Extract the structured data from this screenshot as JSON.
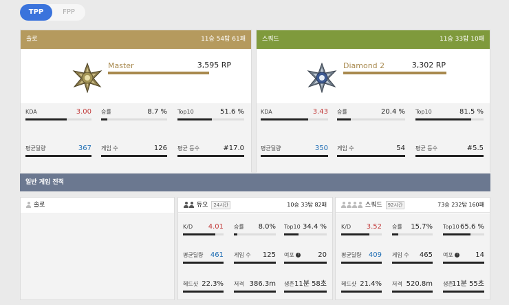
{
  "tabs": {
    "tpp": "TPP",
    "fpp": "FPP"
  },
  "colors": {
    "solo_header": "#b59a5e",
    "squad_header": "#7f9a3c",
    "rank_bar": "#a8894e",
    "tab_active": "#3a73dc",
    "banner": "#6b7890",
    "stat_red": "#c23b3b",
    "stat_blue": "#1b6bb3"
  },
  "ranked": {
    "solo": {
      "title": "솔로",
      "record": "11승 54탑 61패",
      "medal_icon": "master-medal-icon",
      "rank": "Master",
      "rp": "3,595 RP",
      "stats": [
        {
          "label": "KDA",
          "value": "3.00",
          "color": "red",
          "fill": 0.62
        },
        {
          "label": "승률",
          "value": "8.7 %",
          "color": "",
          "fill": 0.09
        },
        {
          "label": "Top10",
          "value": "51.6 %",
          "color": "",
          "fill": 0.52
        },
        {
          "label": "평균딜량",
          "value": "367",
          "color": "blue",
          "fill": 1
        },
        {
          "label": "게임 수",
          "value": "126",
          "color": "",
          "fill": 1
        },
        {
          "label": "평균 등수",
          "value": "#17.0",
          "color": "",
          "fill": 1
        }
      ]
    },
    "squad": {
      "title": "스쿼드",
      "record": "11승 33탑 10패",
      "medal_icon": "diamond-medal-icon",
      "rank": "Diamond 2",
      "rp": "3,302 RP",
      "stats": [
        {
          "label": "KDA",
          "value": "3.43",
          "color": "red",
          "fill": 0.7
        },
        {
          "label": "승률",
          "value": "20.4 %",
          "color": "",
          "fill": 0.2
        },
        {
          "label": "Top10",
          "value": "81.5 %",
          "color": "",
          "fill": 0.82
        },
        {
          "label": "평균딜량",
          "value": "350",
          "color": "blue",
          "fill": 1
        },
        {
          "label": "게임 수",
          "value": "54",
          "color": "",
          "fill": 1
        },
        {
          "label": "평균 등수",
          "value": "#5.5",
          "color": "",
          "fill": 1
        }
      ]
    }
  },
  "normal": {
    "banner": "일반 게임 전적",
    "solo": {
      "title": "솔로",
      "icon": "person-icon"
    },
    "duo": {
      "title": "듀오",
      "badge": "24시간",
      "record": "10승 33탑 82패",
      "icon": "duo-people-icon",
      "stats": [
        {
          "label": "K/D",
          "value": "4.01",
          "color": "red",
          "fill": 0.8
        },
        {
          "label": "승률",
          "value": "8.0%",
          "color": "",
          "fill": 0.08
        },
        {
          "label": "Top10",
          "value": "34.4 %",
          "color": "",
          "fill": 0.34
        },
        {
          "label": "평균딜량",
          "value": "461",
          "color": "blue",
          "fill": 1
        },
        {
          "label": "게임 수",
          "value": "125",
          "color": "",
          "fill": 1
        },
        {
          "label": "여포",
          "value": "20",
          "color": "",
          "fill": 1,
          "info": true
        },
        {
          "label": "헤드샷",
          "value": "22.3%",
          "color": "",
          "fill": 1
        },
        {
          "label": "저격",
          "value": "386.3m",
          "color": "",
          "fill": 1
        },
        {
          "label": "생존",
          "value": "11분 58초",
          "color": "",
          "fill": 1
        }
      ]
    },
    "squad": {
      "title": "스쿼드",
      "badge": "92시간",
      "record": "73승 232탑 160패",
      "icon": "squad-people-icon",
      "stats": [
        {
          "label": "K/D",
          "value": "3.52",
          "color": "red",
          "fill": 0.7
        },
        {
          "label": "승률",
          "value": "15.7%",
          "color": "",
          "fill": 0.16
        },
        {
          "label": "Top10",
          "value": "65.6 %",
          "color": "",
          "fill": 0.66
        },
        {
          "label": "평균딜량",
          "value": "409",
          "color": "blue",
          "fill": 1
        },
        {
          "label": "게임 수",
          "value": "465",
          "color": "",
          "fill": 1
        },
        {
          "label": "여포",
          "value": "14",
          "color": "",
          "fill": 1,
          "info": true
        },
        {
          "label": "헤드샷",
          "value": "21.4%",
          "color": "",
          "fill": 1
        },
        {
          "label": "저격",
          "value": "520.8m",
          "color": "",
          "fill": 1
        },
        {
          "label": "생존",
          "value": "11분 55초",
          "color": "",
          "fill": 1
        }
      ]
    }
  }
}
